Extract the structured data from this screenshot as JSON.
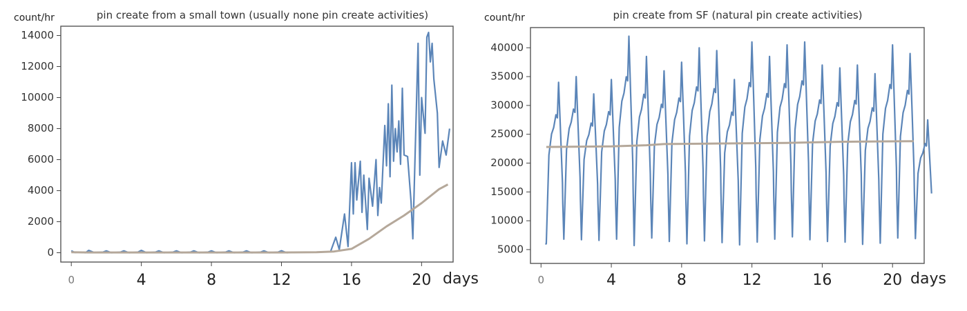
{
  "chart_data": [
    {
      "type": "line",
      "title": "pin create from a small town (usually none pin create activities)",
      "ylabel": "count/hr",
      "xlabel": "days",
      "xlim": [
        -0.6,
        21.8
      ],
      "ylim": [
        -600,
        14600
      ],
      "xticks": [
        "0",
        "4",
        "8",
        "12",
        "16",
        "20"
      ],
      "yticks": [
        "0",
        "2000",
        "4000",
        "6000",
        "8000",
        "10000",
        "12000",
        "14000"
      ],
      "grid": false,
      "series": [
        {
          "role": "observed",
          "color": "#5b85b8",
          "points": [
            [
              0,
              130
            ],
            [
              0.2,
              20
            ],
            [
              0.5,
              40
            ],
            [
              0.8,
              0
            ],
            [
              1.0,
              150
            ],
            [
              1.3,
              20
            ],
            [
              1.8,
              40
            ],
            [
              2.0,
              120
            ],
            [
              2.3,
              0
            ],
            [
              2.8,
              40
            ],
            [
              3.0,
              120
            ],
            [
              3.3,
              0
            ],
            [
              3.8,
              40
            ],
            [
              4.0,
              150
            ],
            [
              4.3,
              0
            ],
            [
              4.8,
              40
            ],
            [
              5.0,
              120
            ],
            [
              5.3,
              0
            ],
            [
              5.8,
              40
            ],
            [
              6.0,
              120
            ],
            [
              6.3,
              0
            ],
            [
              6.8,
              40
            ],
            [
              7.0,
              120
            ],
            [
              7.3,
              0
            ],
            [
              7.8,
              40
            ],
            [
              8.0,
              120
            ],
            [
              8.3,
              0
            ],
            [
              8.8,
              40
            ],
            [
              9.0,
              120
            ],
            [
              9.3,
              0
            ],
            [
              9.8,
              40
            ],
            [
              10.0,
              120
            ],
            [
              10.3,
              0
            ],
            [
              10.8,
              40
            ],
            [
              11.0,
              120
            ],
            [
              11.3,
              0
            ],
            [
              11.8,
              40
            ],
            [
              12.0,
              130
            ],
            [
              12.3,
              0
            ],
            [
              13.0,
              40
            ],
            [
              14.0,
              40
            ],
            [
              14.8,
              60
            ],
            [
              15.1,
              1000
            ],
            [
              15.3,
              200
            ],
            [
              15.6,
              2500
            ],
            [
              15.8,
              400
            ],
            [
              16.0,
              5800
            ],
            [
              16.1,
              2500
            ],
            [
              16.2,
              5800
            ],
            [
              16.3,
              3400
            ],
            [
              16.5,
              5900
            ],
            [
              16.6,
              2600
            ],
            [
              16.7,
              5000
            ],
            [
              16.9,
              1500
            ],
            [
              17.0,
              4800
            ],
            [
              17.2,
              3000
            ],
            [
              17.4,
              6000
            ],
            [
              17.5,
              2400
            ],
            [
              17.6,
              4200
            ],
            [
              17.7,
              3200
            ],
            [
              17.9,
              8200
            ],
            [
              18.0,
              5600
            ],
            [
              18.1,
              9600
            ],
            [
              18.2,
              4900
            ],
            [
              18.3,
              10800
            ],
            [
              18.4,
              5900
            ],
            [
              18.5,
              8000
            ],
            [
              18.6,
              6500
            ],
            [
              18.7,
              8500
            ],
            [
              18.8,
              5700
            ],
            [
              18.9,
              10600
            ],
            [
              19.0,
              6300
            ],
            [
              19.2,
              6200
            ],
            [
              19.4,
              3300
            ],
            [
              19.5,
              900
            ],
            [
              19.6,
              5000
            ],
            [
              19.8,
              13500
            ],
            [
              19.9,
              5000
            ],
            [
              20.0,
              10000
            ],
            [
              20.2,
              7700
            ],
            [
              20.3,
              13900
            ],
            [
              20.4,
              14200
            ],
            [
              20.5,
              12300
            ],
            [
              20.6,
              13500
            ],
            [
              20.7,
              11200
            ],
            [
              20.9,
              9000
            ],
            [
              21.0,
              5500
            ],
            [
              21.2,
              7200
            ],
            [
              21.4,
              6300
            ],
            [
              21.6,
              8000
            ]
          ]
        },
        {
          "role": "baseline",
          "color": "#b5a89a",
          "points": [
            [
              0,
              30
            ],
            [
              1,
              20
            ],
            [
              2,
              20
            ],
            [
              4,
              20
            ],
            [
              6,
              20
            ],
            [
              8,
              20
            ],
            [
              10,
              20
            ],
            [
              12,
              20
            ],
            [
              14,
              30
            ],
            [
              15,
              80
            ],
            [
              16,
              250
            ],
            [
              17,
              900
            ],
            [
              18,
              1700
            ],
            [
              19,
              2400
            ],
            [
              20,
              3200
            ],
            [
              21,
              4100
            ],
            [
              21.5,
              4400
            ]
          ]
        }
      ]
    },
    {
      "type": "line",
      "title": "pin create from SF (natural pin create activities)",
      "ylabel": "count/hr",
      "xlabel": "days",
      "xlim": [
        -0.6,
        21.8
      ],
      "ylim": [
        2600,
        43500
      ],
      "xticks": [
        "0",
        "4",
        "8",
        "12",
        "16",
        "20"
      ],
      "yticks": [
        "5000",
        "10000",
        "15000",
        "20000",
        "25000",
        "30000",
        "35000",
        "40000"
      ],
      "grid": false,
      "series": [
        {
          "role": "observed",
          "color": "#5b85b8",
          "daily_cycle": {
            "start_day": 0.3,
            "min": [
              6000,
              6800,
              6700,
              6600,
              6800,
              5700,
              7000,
              6400,
              6000,
              6500,
              6200,
              5800,
              6300,
              6800,
              7200,
              6700,
              6400,
              6300,
              5900,
              6100,
              7000,
              6900
            ],
            "max": [
              34000,
              35000,
              32000,
              34500,
              42000,
              38500,
              36000,
              37500,
              40000,
              39500,
              34500,
              41000,
              38500,
              40500,
              41000,
              37000,
              36500,
              37000,
              35500,
              40500,
              39000,
              27500
            ]
          }
        },
        {
          "role": "baseline",
          "color": "#b5a89a",
          "points": [
            [
              0.3,
              22800
            ],
            [
              4,
              22900
            ],
            [
              6,
              23100
            ],
            [
              7,
              23300
            ],
            [
              10,
              23400
            ],
            [
              14,
              23500
            ],
            [
              17,
              23700
            ],
            [
              21.2,
              23800
            ]
          ]
        }
      ]
    }
  ]
}
